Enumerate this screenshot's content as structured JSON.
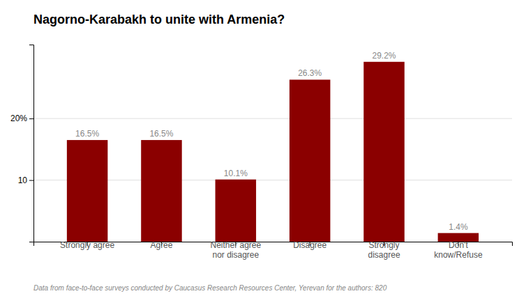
{
  "chart_data": {
    "type": "bar",
    "title": "Nagorno-Karabakh to unite with Armenia?",
    "categories": [
      "Strongly agree",
      "Agree",
      "Neither agree\nnor disagree",
      "Disagree",
      "Strongly\ndisagree",
      "Don't\nknow/Refuse"
    ],
    "values": [
      16.5,
      16.5,
      10.1,
      26.3,
      29.2,
      1.4
    ],
    "value_labels": [
      "16.5%",
      "16.5%",
      "10.1%",
      "26.3%",
      "29.2%",
      "1.4%"
    ],
    "data_labels": true,
    "color": "#8B0000",
    "ylim": [
      0,
      32
    ],
    "yticks": [
      10,
      {
        "value": 20,
        "label": "20%"
      }
    ],
    "grid": true,
    "footnote": "Data from face-to-face surveys conducted by Caucasus Research Resources Center, Yerevan for the authors: 820"
  }
}
